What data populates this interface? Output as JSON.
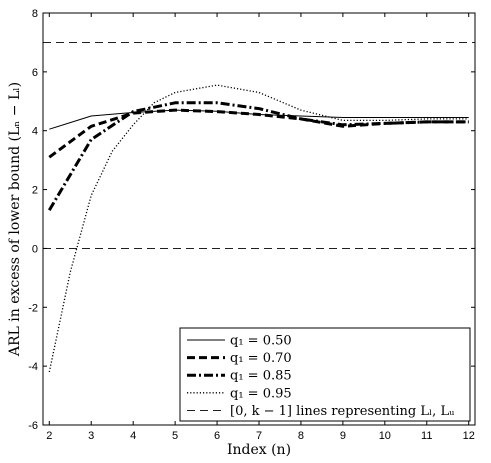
{
  "chart_data": {
    "type": "line",
    "xlabel": "Index (n)",
    "ylabel": "ARL in excess of lower bound (Lₙ − Lₗ)",
    "xlim": [
      1.85,
      12.15
    ],
    "ylim": [
      -6,
      8
    ],
    "xticks": [
      2,
      3,
      4,
      5,
      6,
      7,
      8,
      9,
      10,
      11,
      12
    ],
    "yticks": [
      -6,
      -4,
      -2,
      0,
      2,
      4,
      6,
      8
    ],
    "grid": false,
    "legend_position": "bottom-right",
    "series": [
      {
        "name": "q₁ = 0.50",
        "style": "solid",
        "x": [
          2,
          3,
          4,
          5,
          6,
          7,
          8,
          9,
          10,
          11,
          12
        ],
        "y": [
          4.05,
          4.5,
          4.62,
          4.7,
          4.66,
          4.55,
          4.5,
          4.45,
          4.45,
          4.45,
          4.45
        ]
      },
      {
        "name": "q₁ = 0.70",
        "style": "dashed",
        "x": [
          2,
          3,
          4,
          5,
          6,
          7,
          8,
          9,
          10,
          11,
          12
        ],
        "y": [
          3.1,
          4.15,
          4.6,
          4.7,
          4.65,
          4.55,
          4.4,
          4.15,
          4.25,
          4.3,
          4.3
        ]
      },
      {
        "name": "q₁ = 0.85",
        "style": "dashdot",
        "x": [
          2,
          3,
          4,
          5,
          6,
          7,
          8,
          9,
          10,
          11,
          12
        ],
        "y": [
          1.3,
          3.7,
          4.65,
          4.95,
          4.95,
          4.75,
          4.4,
          4.2,
          4.25,
          4.3,
          4.3
        ]
      },
      {
        "name": "q₁ = 0.95",
        "style": "dotted",
        "x": [
          2,
          2.5,
          3,
          3.5,
          4,
          4.5,
          5,
          6,
          7,
          8,
          9,
          10,
          11,
          12
        ],
        "y": [
          -4.2,
          -0.8,
          1.8,
          3.3,
          4.2,
          4.95,
          5.3,
          5.55,
          5.3,
          4.7,
          4.35,
          4.35,
          4.4,
          4.4
        ]
      },
      {
        "name": "[0, k − 1] lines representing Lₗ, Lᵤ",
        "style": "longdash",
        "hlines": [
          0,
          7
        ]
      }
    ]
  }
}
